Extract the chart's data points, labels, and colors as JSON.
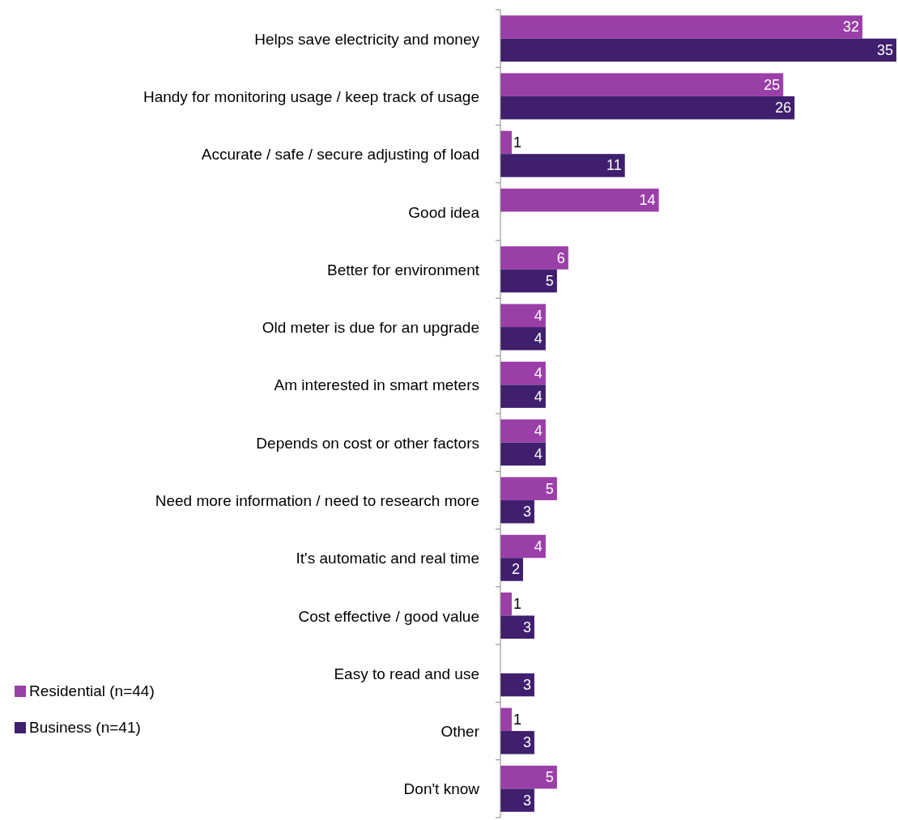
{
  "chart_data": {
    "type": "bar",
    "orientation": "horizontal",
    "data_labels": true,
    "legend": "left",
    "categories": [
      "Helps save electricity and money",
      "Handy for monitoring usage / keep track of usage",
      "Accurate / safe / secure adjusting of load",
      "Good idea",
      "Better for environment",
      "Old meter is due for an upgrade",
      "Am interested in smart meters",
      "Depends on cost or other factors",
      "Need more information / need to research more",
      "It's automatic and real time",
      "Cost effective / good value",
      "Easy to read and use",
      "Other",
      "Don't know"
    ],
    "series": [
      {
        "name": "Residential (n=44)",
        "color": "#9b3fa8",
        "values": [
          32,
          25,
          1,
          14,
          6,
          4,
          4,
          4,
          5,
          4,
          1,
          null,
          1,
          5
        ]
      },
      {
        "name": "Business (n=41)",
        "color": "#3f1f6e",
        "values": [
          35,
          26,
          11,
          null,
          5,
          4,
          4,
          4,
          3,
          2,
          3,
          3,
          3,
          3
        ]
      }
    ]
  }
}
